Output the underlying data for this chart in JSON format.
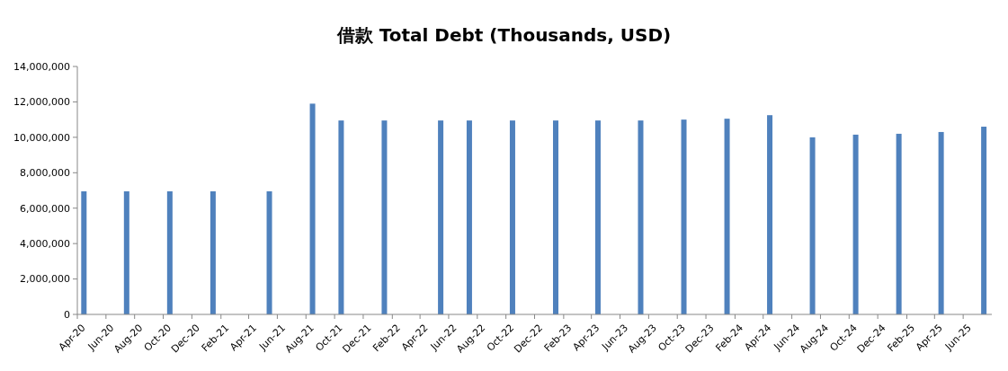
{
  "chart_data": {
    "type": "bar",
    "title": "借款 Total Debt (Thousands, USD)",
    "x": [
      "2020-04-15",
      "2020-07-15",
      "2020-10-15",
      "2021-01-15",
      "2021-05-15",
      "2021-08-15",
      "2021-10-15",
      "2022-01-15",
      "2022-05-15",
      "2022-07-15",
      "2022-10-15",
      "2023-01-15",
      "2023-04-15",
      "2023-07-15",
      "2023-10-15",
      "2024-01-15",
      "2024-04-15",
      "2024-07-15",
      "2024-10-15",
      "2025-01-15",
      "2025-04-15",
      "2025-07-15"
    ],
    "values": [
      6950000,
      6950000,
      6950000,
      6950000,
      6950000,
      11900000,
      10950000,
      10950000,
      10950000,
      10950000,
      10950000,
      10950000,
      10950000,
      10950000,
      11000000,
      11050000,
      11250000,
      10000000,
      10150000,
      10200000,
      10300000,
      10600000
    ],
    "color": "#4f81bd",
    "xlim": [
      "2020-04",
      "2025-08"
    ],
    "xticks": [
      {
        "value": "2020-04",
        "label": "Apr-20"
      },
      {
        "value": "2020-06",
        "label": "Jun-20"
      },
      {
        "value": "2020-08",
        "label": "Aug-20"
      },
      {
        "value": "2020-10",
        "label": "Oct-20"
      },
      {
        "value": "2020-12",
        "label": "Dec-20"
      },
      {
        "value": "2021-02",
        "label": "Feb-21"
      },
      {
        "value": "2021-04",
        "label": "Apr-21"
      },
      {
        "value": "2021-06",
        "label": "Jun-21"
      },
      {
        "value": "2021-08",
        "label": "Aug-21"
      },
      {
        "value": "2021-10",
        "label": "Oct-21"
      },
      {
        "value": "2021-12",
        "label": "Dec-21"
      },
      {
        "value": "2022-02",
        "label": "Feb-22"
      },
      {
        "value": "2022-04",
        "label": "Apr-22"
      },
      {
        "value": "2022-06",
        "label": "Jun-22"
      },
      {
        "value": "2022-08",
        "label": "Aug-22"
      },
      {
        "value": "2022-10",
        "label": "Oct-22"
      },
      {
        "value": "2022-12",
        "label": "Dec-22"
      },
      {
        "value": "2023-02",
        "label": "Feb-23"
      },
      {
        "value": "2023-04",
        "label": "Apr-23"
      },
      {
        "value": "2023-06",
        "label": "Jun-23"
      },
      {
        "value": "2023-08",
        "label": "Aug-23"
      },
      {
        "value": "2023-10",
        "label": "Oct-23"
      },
      {
        "value": "2023-12",
        "label": "Dec-23"
      },
      {
        "value": "2024-02",
        "label": "Feb-24"
      },
      {
        "value": "2024-04",
        "label": "Apr-24"
      },
      {
        "value": "2024-06",
        "label": "Jun-24"
      },
      {
        "value": "2024-08",
        "label": "Aug-24"
      },
      {
        "value": "2024-10",
        "label": "Oct-24"
      },
      {
        "value": "2024-12",
        "label": "Dec-24"
      },
      {
        "value": "2025-02",
        "label": "Feb-25"
      },
      {
        "value": "2025-04",
        "label": "Apr-25"
      },
      {
        "value": "2025-06",
        "label": "Jun-25"
      }
    ],
    "ylim": [
      0,
      14000000
    ],
    "yticks": [
      {
        "value": 0,
        "label": "0"
      },
      {
        "value": 2000000,
        "label": "2,000,000"
      },
      {
        "value": 4000000,
        "label": "4,000,000"
      },
      {
        "value": 6000000,
        "label": "6,000,000"
      },
      {
        "value": 8000000,
        "label": "8,000,000"
      },
      {
        "value": 10000000,
        "label": "10,000,000"
      },
      {
        "value": 12000000,
        "label": "12,000,000"
      },
      {
        "value": 14000000,
        "label": "14,000,000"
      }
    ],
    "grid": false
  }
}
